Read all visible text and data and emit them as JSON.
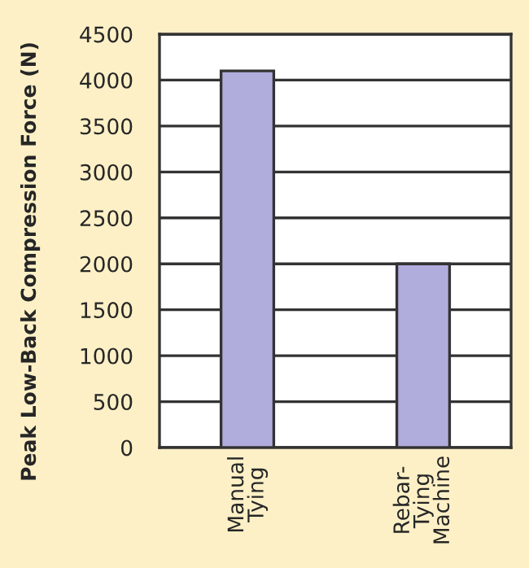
{
  "chart_data": {
    "type": "bar",
    "ylabel": "Peak Low-Back Compression Force (N)",
    "categories": [
      "Manual\nTying",
      "Rebar-\nTying\nMachine"
    ],
    "series": [
      {
        "color": "#b0acdc",
        "values": [
          4100,
          2000
        ]
      }
    ],
    "ylim": [
      0,
      4500
    ],
    "yticks": [
      0,
      500,
      1000,
      1500,
      2000,
      2500,
      3000,
      3500,
      4000,
      4500
    ],
    "grid": "y"
  }
}
